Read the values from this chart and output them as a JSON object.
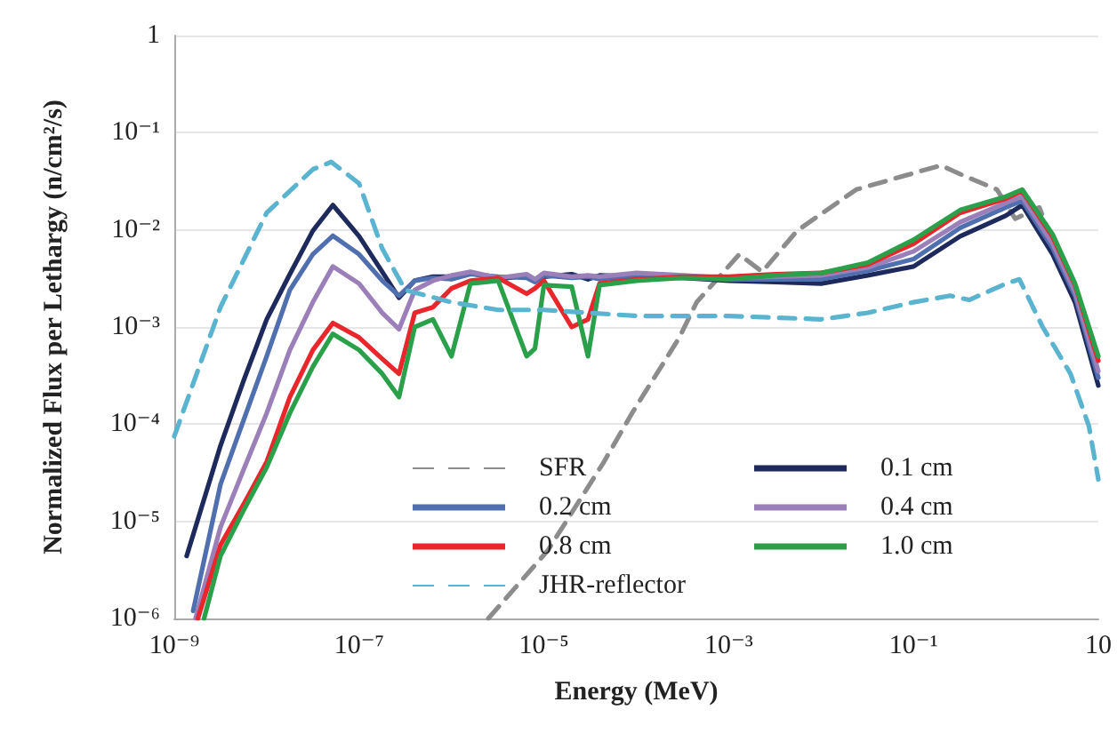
{
  "chart_data": {
    "type": "line",
    "xlabel": "Energy (MeV)",
    "ylabel": "Normalized Flux per Lethargy (n/cm²/s)",
    "log": "xy",
    "grid": "y",
    "legend": "bottom",
    "marker": "none",
    "xlim": [
      1e-09,
      10
    ],
    "xticks": [
      {
        "value": 1e-09,
        "label": "10⁻⁹"
      },
      {
        "value": 1e-07,
        "label": "10⁻⁷"
      },
      {
        "value": 1e-05,
        "label": "10⁻⁵"
      },
      {
        "value": 0.001,
        "label": "10⁻³"
      },
      {
        "value": 0.1,
        "label": "10⁻¹"
      },
      10
    ],
    "ylim": [
      1e-06,
      1
    ],
    "yticks": [
      {
        "value": 1e-06,
        "label": "10⁻⁶"
      },
      {
        "value": 1e-05,
        "label": "10⁻⁵"
      },
      {
        "value": 0.0001,
        "label": "10⁻⁴"
      },
      {
        "value": 0.001,
        "label": "10⁻³"
      },
      {
        "value": 0.01,
        "label": "10⁻²"
      },
      {
        "value": 0.1,
        "label": "10⁻¹"
      },
      1
    ],
    "series": [
      {
        "name": "SFR",
        "color": "#8c8c8c",
        "line_style": "dashed",
        "x": [
          2.5e-06,
          1.1e-05,
          4.4e-05,
          9e-05,
          0.00029,
          0.00045,
          0.0013,
          0.0023,
          0.0055,
          0.024,
          0.14,
          0.2,
          0.33,
          0.8,
          1.26,
          2.3,
          3.6,
          5.6
        ],
        "values": [
          1e-06,
          5e-06,
          4e-05,
          0.00013,
          0.00077,
          0.0018,
          0.0056,
          0.0037,
          0.0098,
          0.026,
          0.042,
          0.046,
          0.037,
          0.026,
          0.013,
          0.017,
          0.0056,
          0.0018
        ]
      },
      {
        "name": "0.1 cm",
        "color": "#1f2a5c",
        "x": [
          1.36e-09,
          3.16e-09,
          5.62e-09,
          1e-08,
          1.78e-08,
          3.16e-08,
          5.2e-08,
          1e-07,
          1.78e-07,
          2.7e-07,
          4e-07,
          6.3e-07,
          1e-06,
          1.6e-06,
          3.2e-06,
          6.5e-06,
          8e-06,
          1e-05,
          2e-05,
          3e-05,
          4e-05,
          0.0001,
          0.00032,
          0.001,
          0.0032,
          0.01,
          0.032,
          0.1,
          0.32,
          1,
          1.5,
          3.2,
          5.6,
          10
        ],
        "values": [
          4.4e-06,
          6e-05,
          0.00028,
          0.0012,
          0.0035,
          0.0098,
          0.018,
          0.0086,
          0.0037,
          0.002,
          0.003,
          0.0033,
          0.0033,
          0.0036,
          0.0031,
          0.0034,
          0.003,
          0.0033,
          0.0035,
          0.0031,
          0.0034,
          0.0033,
          0.0032,
          0.003,
          0.0029,
          0.0028,
          0.0034,
          0.0042,
          0.0086,
          0.014,
          0.018,
          0.0056,
          0.0018,
          0.00025
        ]
      },
      {
        "name": "0.2 cm",
        "color": "#4f6fae",
        "x": [
          1.6e-09,
          3.16e-09,
          5.62e-09,
          1e-08,
          1.78e-08,
          3.16e-08,
          5.2e-08,
          1e-07,
          1.78e-07,
          2.7e-07,
          4e-07,
          6.3e-07,
          1e-06,
          1.6e-06,
          3.2e-06,
          6.5e-06,
          8e-06,
          1e-05,
          2e-05,
          3e-05,
          4e-05,
          0.0001,
          0.00032,
          0.001,
          0.0032,
          0.01,
          0.032,
          0.1,
          0.32,
          1,
          1.5,
          3.2,
          5.6,
          10
        ],
        "values": [
          1.2e-06,
          2.4e-05,
          0.00011,
          0.0005,
          0.0024,
          0.0056,
          0.0087,
          0.0056,
          0.003,
          0.0021,
          0.003,
          0.0032,
          0.0031,
          0.0035,
          0.0033,
          0.0032,
          0.0029,
          0.0034,
          0.0032,
          0.0033,
          0.0031,
          0.0034,
          0.0033,
          0.0031,
          0.0031,
          0.0031,
          0.0038,
          0.005,
          0.0105,
          0.017,
          0.02,
          0.0065,
          0.0021,
          0.0003
        ]
      },
      {
        "name": "0.4 cm",
        "color": "#9a7fb8",
        "x": [
          1.7e-09,
          3.16e-09,
          5.62e-09,
          1e-08,
          1.78e-08,
          3.16e-08,
          5.2e-08,
          1e-07,
          1.78e-07,
          2.7e-07,
          4e-07,
          6.3e-07,
          1e-06,
          1.6e-06,
          3.2e-06,
          6.5e-06,
          8e-06,
          1e-05,
          2e-05,
          3e-05,
          4e-05,
          0.0001,
          0.00032,
          0.001,
          0.0032,
          0.01,
          0.032,
          0.1,
          0.32,
          1,
          1.5,
          3.2,
          5.6,
          10
        ],
        "values": [
          1e-06,
          8.7e-06,
          3.4e-05,
          0.00013,
          0.00058,
          0.0018,
          0.0042,
          0.0028,
          0.0014,
          0.00095,
          0.0024,
          0.003,
          0.0034,
          0.0037,
          0.0032,
          0.0035,
          0.0031,
          0.0036,
          0.0033,
          0.0034,
          0.0033,
          0.0036,
          0.0034,
          0.0032,
          0.0033,
          0.0034,
          0.0041,
          0.006,
          0.012,
          0.019,
          0.022,
          0.0072,
          0.0023,
          0.00035
        ]
      },
      {
        "name": "0.8 cm",
        "color": "#e8262b",
        "x": [
          1.8e-09,
          3.16e-09,
          5.62e-09,
          1e-08,
          1.78e-08,
          3.16e-08,
          5.2e-08,
          1e-07,
          1.78e-07,
          2.7e-07,
          4e-07,
          6.3e-07,
          1e-06,
          1.6e-06,
          3.2e-06,
          6.5e-06,
          8e-06,
          1e-05,
          2e-05,
          3e-05,
          4e-05,
          0.0001,
          0.00032,
          0.001,
          0.0032,
          0.01,
          0.032,
          0.1,
          0.32,
          1,
          1.5,
          3.2,
          5.6,
          10
        ],
        "values": [
          1e-06,
          5.7e-06,
          1.5e-05,
          4.1e-05,
          0.00019,
          0.00058,
          0.0011,
          0.00078,
          0.00047,
          0.00033,
          0.0014,
          0.0016,
          0.0025,
          0.003,
          0.0032,
          0.0022,
          0.0025,
          0.003,
          0.001,
          0.0012,
          0.0028,
          0.0031,
          0.0033,
          0.0033,
          0.0035,
          0.0036,
          0.0044,
          0.0072,
          0.015,
          0.021,
          0.025,
          0.0085,
          0.0027,
          0.00045
        ]
      },
      {
        "name": "1.0 cm",
        "color": "#2aa04a",
        "x": [
          2.1e-09,
          3.16e-09,
          5.62e-09,
          1e-08,
          1.78e-08,
          3.16e-08,
          5.2e-08,
          1e-07,
          1.78e-07,
          2.7e-07,
          4e-07,
          6.3e-07,
          1e-06,
          1.6e-06,
          3.2e-06,
          6.5e-06,
          8e-06,
          1e-05,
          2e-05,
          3e-05,
          4e-05,
          0.0001,
          0.00032,
          0.001,
          0.0032,
          0.01,
          0.032,
          0.1,
          0.32,
          1,
          1.5,
          3.2,
          5.6,
          10
        ],
        "values": [
          1e-06,
          4.4e-06,
          1.3e-05,
          3.6e-05,
          0.00013,
          0.00039,
          0.00085,
          0.00058,
          0.00033,
          0.00019,
          0.001,
          0.0012,
          0.0005,
          0.0028,
          0.003,
          0.0005,
          0.0006,
          0.0027,
          0.0026,
          0.0005,
          0.0027,
          0.003,
          0.0032,
          0.0031,
          0.0034,
          0.0036,
          0.0046,
          0.0079,
          0.016,
          0.022,
          0.026,
          0.009,
          0.0028,
          0.0005
        ]
      },
      {
        "name": "JHR-reflector",
        "color": "#5ab4d0",
        "line_style": "dashed",
        "x": [
          1e-09,
          3.16e-09,
          1e-08,
          3.16e-08,
          5e-08,
          1e-07,
          1.78e-07,
          3.16e-07,
          1e-06,
          3.2e-06,
          1e-05,
          0.0001,
          0.001,
          0.01,
          0.032,
          0.1,
          0.25,
          0.4,
          1,
          1.4,
          2.5,
          5,
          7.9,
          10
        ],
        "values": [
          7.5e-05,
          0.0016,
          0.015,
          0.042,
          0.05,
          0.03,
          0.0064,
          0.0024,
          0.0018,
          0.0015,
          0.0015,
          0.0013,
          0.0013,
          0.0012,
          0.0014,
          0.0018,
          0.0021,
          0.0019,
          0.0028,
          0.0031,
          0.001,
          0.00033,
          9.6e-05,
          2.7e-05
        ]
      }
    ]
  }
}
